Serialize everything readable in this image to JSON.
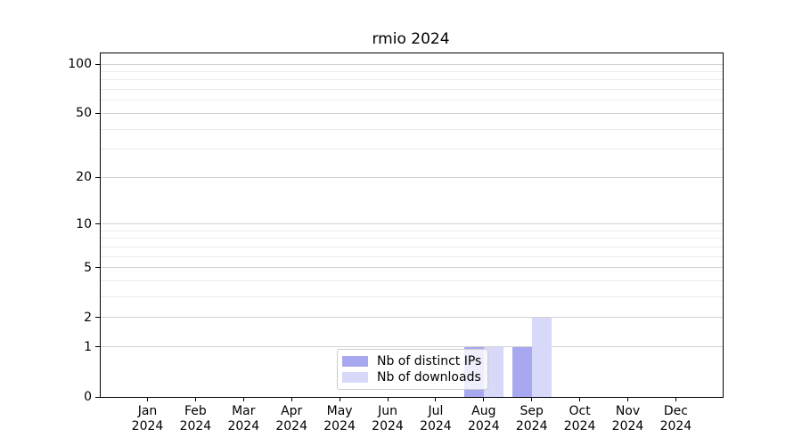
{
  "chart_data": {
    "type": "bar",
    "title": "rmio 2024",
    "categories": [
      "Jan",
      "Feb",
      "Mar",
      "Apr",
      "May",
      "Jun",
      "Jul",
      "Aug",
      "Sep",
      "Oct",
      "Nov",
      "Dec"
    ],
    "year": "2024",
    "series": [
      {
        "name": "Nb of distinct IPs",
        "color": "#a8a8f0",
        "values": [
          0,
          0,
          0,
          0,
          0,
          0,
          0,
          1,
          1,
          0,
          0,
          0
        ]
      },
      {
        "name": "Nb of downloads",
        "color": "#d8d8f8",
        "values": [
          0,
          0,
          0,
          0,
          0,
          0,
          0,
          1,
          2,
          0,
          0,
          0
        ]
      }
    ],
    "yscale": "log1p",
    "ylim": [
      0,
      115
    ],
    "y_major_ticks": [
      0,
      1,
      2,
      5,
      10,
      20,
      50,
      100
    ],
    "y_minor_ticks": [
      3,
      4,
      6,
      7,
      8,
      9,
      30,
      40,
      60,
      70,
      80,
      90
    ],
    "grid": "horizontal",
    "legend_position": "lower-center",
    "colors": {
      "axis": "#000000",
      "grid_major": "#d2d2d2",
      "grid_minor": "#ececec",
      "background": "#ffffff",
      "legend_border": "#cccccc",
      "legend_background": "rgba(255,255,255,0.8)"
    }
  }
}
